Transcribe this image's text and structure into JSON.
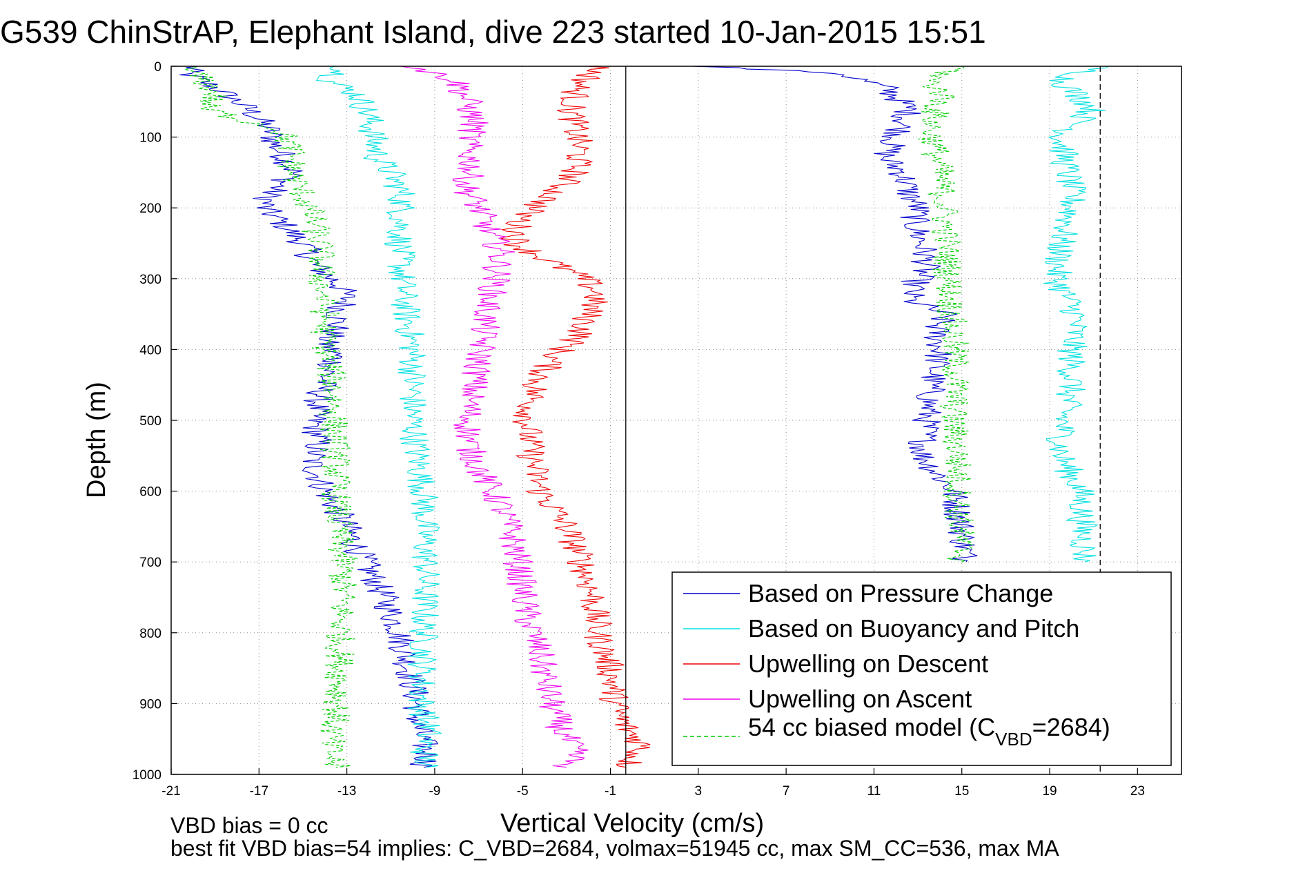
{
  "chart_data": {
    "type": "line",
    "title": "G539 ChinStrAP, Elephant Island, dive 223 started 10-Jan-2015 15:51",
    "xlabel": "Vertical Velocity (cm/s)",
    "ylabel": "Depth (m)",
    "xlim": [
      -21,
      25
    ],
    "ylim": [
      1000,
      0
    ],
    "x_ticks": [
      "-21",
      "-17",
      "-13",
      "-9",
      "-5",
      "-1",
      "3",
      "7",
      "11",
      "15",
      "19",
      "23"
    ],
    "y_ticks": [
      "0",
      "100",
      "200",
      "300",
      "400",
      "500",
      "600",
      "700",
      "800",
      "900",
      "1000"
    ],
    "grid": true,
    "legend_position": "bottom-right",
    "reference_lines": [
      {
        "x": -0.3,
        "style": "solid"
      },
      {
        "x": 21.3,
        "style": "dashed"
      }
    ],
    "series": [
      {
        "name": "Based on Pressure Change",
        "color": "#0000cc",
        "style": "solid",
        "depth": [
          0,
          10,
          30,
          60,
          90,
          110,
          130,
          150,
          180,
          200,
          220,
          250,
          280,
          310,
          330,
          350,
          370,
          390,
          410,
          440,
          470,
          500,
          530,
          560,
          600,
          650,
          700,
          750,
          800,
          850,
          900,
          930,
          950,
          975,
          990,
          0,
          10,
          30,
          60,
          90,
          110,
          130,
          150,
          180,
          200,
          220,
          250,
          280,
          310,
          330,
          350,
          370,
          400,
          450,
          500,
          550,
          600,
          650,
          700
        ],
        "x": [
          -20,
          -20.3,
          -19,
          -17.5,
          -16.5,
          -16.3,
          -15.8,
          -15.4,
          -16.5,
          -16.8,
          -16,
          -15,
          -14.5,
          -13.3,
          -13,
          -13.4,
          -13.5,
          -14,
          -13.5,
          -14,
          -14.3,
          -14.5,
          -14.3,
          -14.6,
          -14,
          -13,
          -12.2,
          -11.3,
          -10.6,
          -10.2,
          -9.8,
          -9.8,
          -9.6,
          -9.3,
          -9.5,
          3,
          9.5,
          11.5,
          12.6,
          12.2,
          11.8,
          11.5,
          12.3,
          12.6,
          13,
          12.8,
          13.2,
          13.4,
          12.8,
          12.6,
          14.2,
          13.8,
          14,
          13.6,
          13.4,
          13.2,
          14.6,
          15,
          15.2
        ]
      },
      {
        "name": "Based on Buoyancy and Pitch",
        "color": "#00e0e0",
        "style": "solid",
        "depth": [
          0,
          20,
          40,
          70,
          100,
          130,
          150,
          180,
          200,
          250,
          300,
          350,
          400,
          450,
          500,
          550,
          600,
          700,
          800,
          900,
          940,
          960,
          990,
          0,
          20,
          60,
          100,
          150,
          180,
          200,
          250,
          300,
          350,
          400,
          450,
          500,
          550,
          600,
          650,
          700
        ],
        "x": [
          -13,
          -13.8,
          -12.5,
          -12,
          -11.8,
          -11.6,
          -11,
          -10.5,
          -10.5,
          -10.6,
          -10.5,
          -10.3,
          -10,
          -10,
          -10,
          -9.8,
          -9.5,
          -9.4,
          -9.5,
          -9.6,
          -9.3,
          -9.5,
          -9.4,
          21.3,
          19.5,
          21,
          19.5,
          19.8,
          20,
          20,
          19.5,
          19.3,
          20.2,
          20,
          20,
          19.6,
          19.5,
          20.4,
          20.5,
          20.6
        ]
      },
      {
        "name": "Upwelling on Descent",
        "color": "#ee0000",
        "style": "solid",
        "depth": [
          0,
          30,
          60,
          90,
          120,
          150,
          180,
          200,
          220,
          250,
          280,
          300,
          320,
          350,
          380,
          410,
          450,
          500,
          550,
          600,
          650,
          700,
          750,
          800,
          850,
          900,
          930,
          960,
          990
        ],
        "x": [
          -1.5,
          -2.5,
          -2.8,
          -2.6,
          -2.4,
          -2.6,
          -3.6,
          -4.5,
          -5.2,
          -5.3,
          -3.5,
          -2.2,
          -1.6,
          -2,
          -2.4,
          -3.6,
          -4.4,
          -4.8,
          -4.6,
          -4.2,
          -3,
          -2.3,
          -1.8,
          -1.6,
          -1,
          -0.8,
          -0.4,
          0.5,
          -0.3
        ]
      },
      {
        "name": "Upwelling on Ascent",
        "color": "#ee00ee",
        "style": "solid",
        "depth": [
          0,
          20,
          50,
          80,
          110,
          140,
          170,
          200,
          230,
          260,
          300,
          340,
          380,
          420,
          460,
          500,
          540,
          580,
          620,
          660,
          700,
          740,
          780,
          820,
          860,
          900,
          940,
          970,
          990
        ],
        "x": [
          -10,
          -8,
          -7.5,
          -7.2,
          -7.5,
          -7.3,
          -7.6,
          -7,
          -6.6,
          -6,
          -6.2,
          -6.6,
          -6.8,
          -7,
          -7.3,
          -7.5,
          -7.4,
          -6.8,
          -6,
          -5.5,
          -5.2,
          -5,
          -4.8,
          -4.3,
          -4,
          -3.7,
          -3.2,
          -2.6,
          -3
        ]
      },
      {
        "name": "54 cc biased model (C_VBD=2684)",
        "color": "#00cc00",
        "style": "dashed",
        "depth": [
          0,
          20,
          40,
          60,
          90,
          120,
          150,
          180,
          220,
          260,
          300,
          340,
          380,
          420,
          460,
          500,
          550,
          600,
          650,
          700,
          750,
          800,
          850,
          900,
          930,
          960,
          990,
          0,
          20,
          40,
          60,
          90,
          120,
          150,
          200,
          250,
          300,
          340,
          380,
          420,
          460,
          500,
          550,
          600,
          650,
          700
        ],
        "x": [
          -20.5,
          -19.5,
          -19,
          -19.5,
          -16,
          -15.5,
          -15.5,
          -15,
          -14.5,
          -14.2,
          -14.2,
          -14,
          -14,
          -13.8,
          -13.6,
          -13.6,
          -13.5,
          -13.5,
          -13.4,
          -13.2,
          -13.2,
          -13.3,
          -13.3,
          -13.4,
          -13.6,
          -13.8,
          -13.5,
          15,
          13.5,
          14.2,
          13.8,
          13.6,
          13.8,
          14,
          14.2,
          14.3,
          14.4,
          14.5,
          14.6,
          14.7,
          14.7,
          14.6,
          14.8,
          14.8,
          14.9,
          15
        ]
      }
    ],
    "notes": [
      "VBD bias = 0 cc",
      "best fit VBD bias=54 implies: C_VBD=2684, volmax=51945 cc, max SM_CC=536, max MA"
    ]
  },
  "legend": {
    "items": [
      {
        "label": "Based on Pressure Change",
        "color": "#0000cc",
        "style": "solid"
      },
      {
        "label": "Based on Buoyancy and Pitch",
        "color": "#00e0e0",
        "style": "solid"
      },
      {
        "label": "Upwelling on Descent",
        "color": "#ee0000",
        "style": "solid"
      },
      {
        "label": "Upwelling on Ascent",
        "color": "#ee00ee",
        "style": "solid"
      }
    ],
    "model_label_prefix": "54 cc biased model (C",
    "model_label_sub": "VBD",
    "model_label_suffix": "=2684)",
    "model_color": "#00cc00"
  }
}
